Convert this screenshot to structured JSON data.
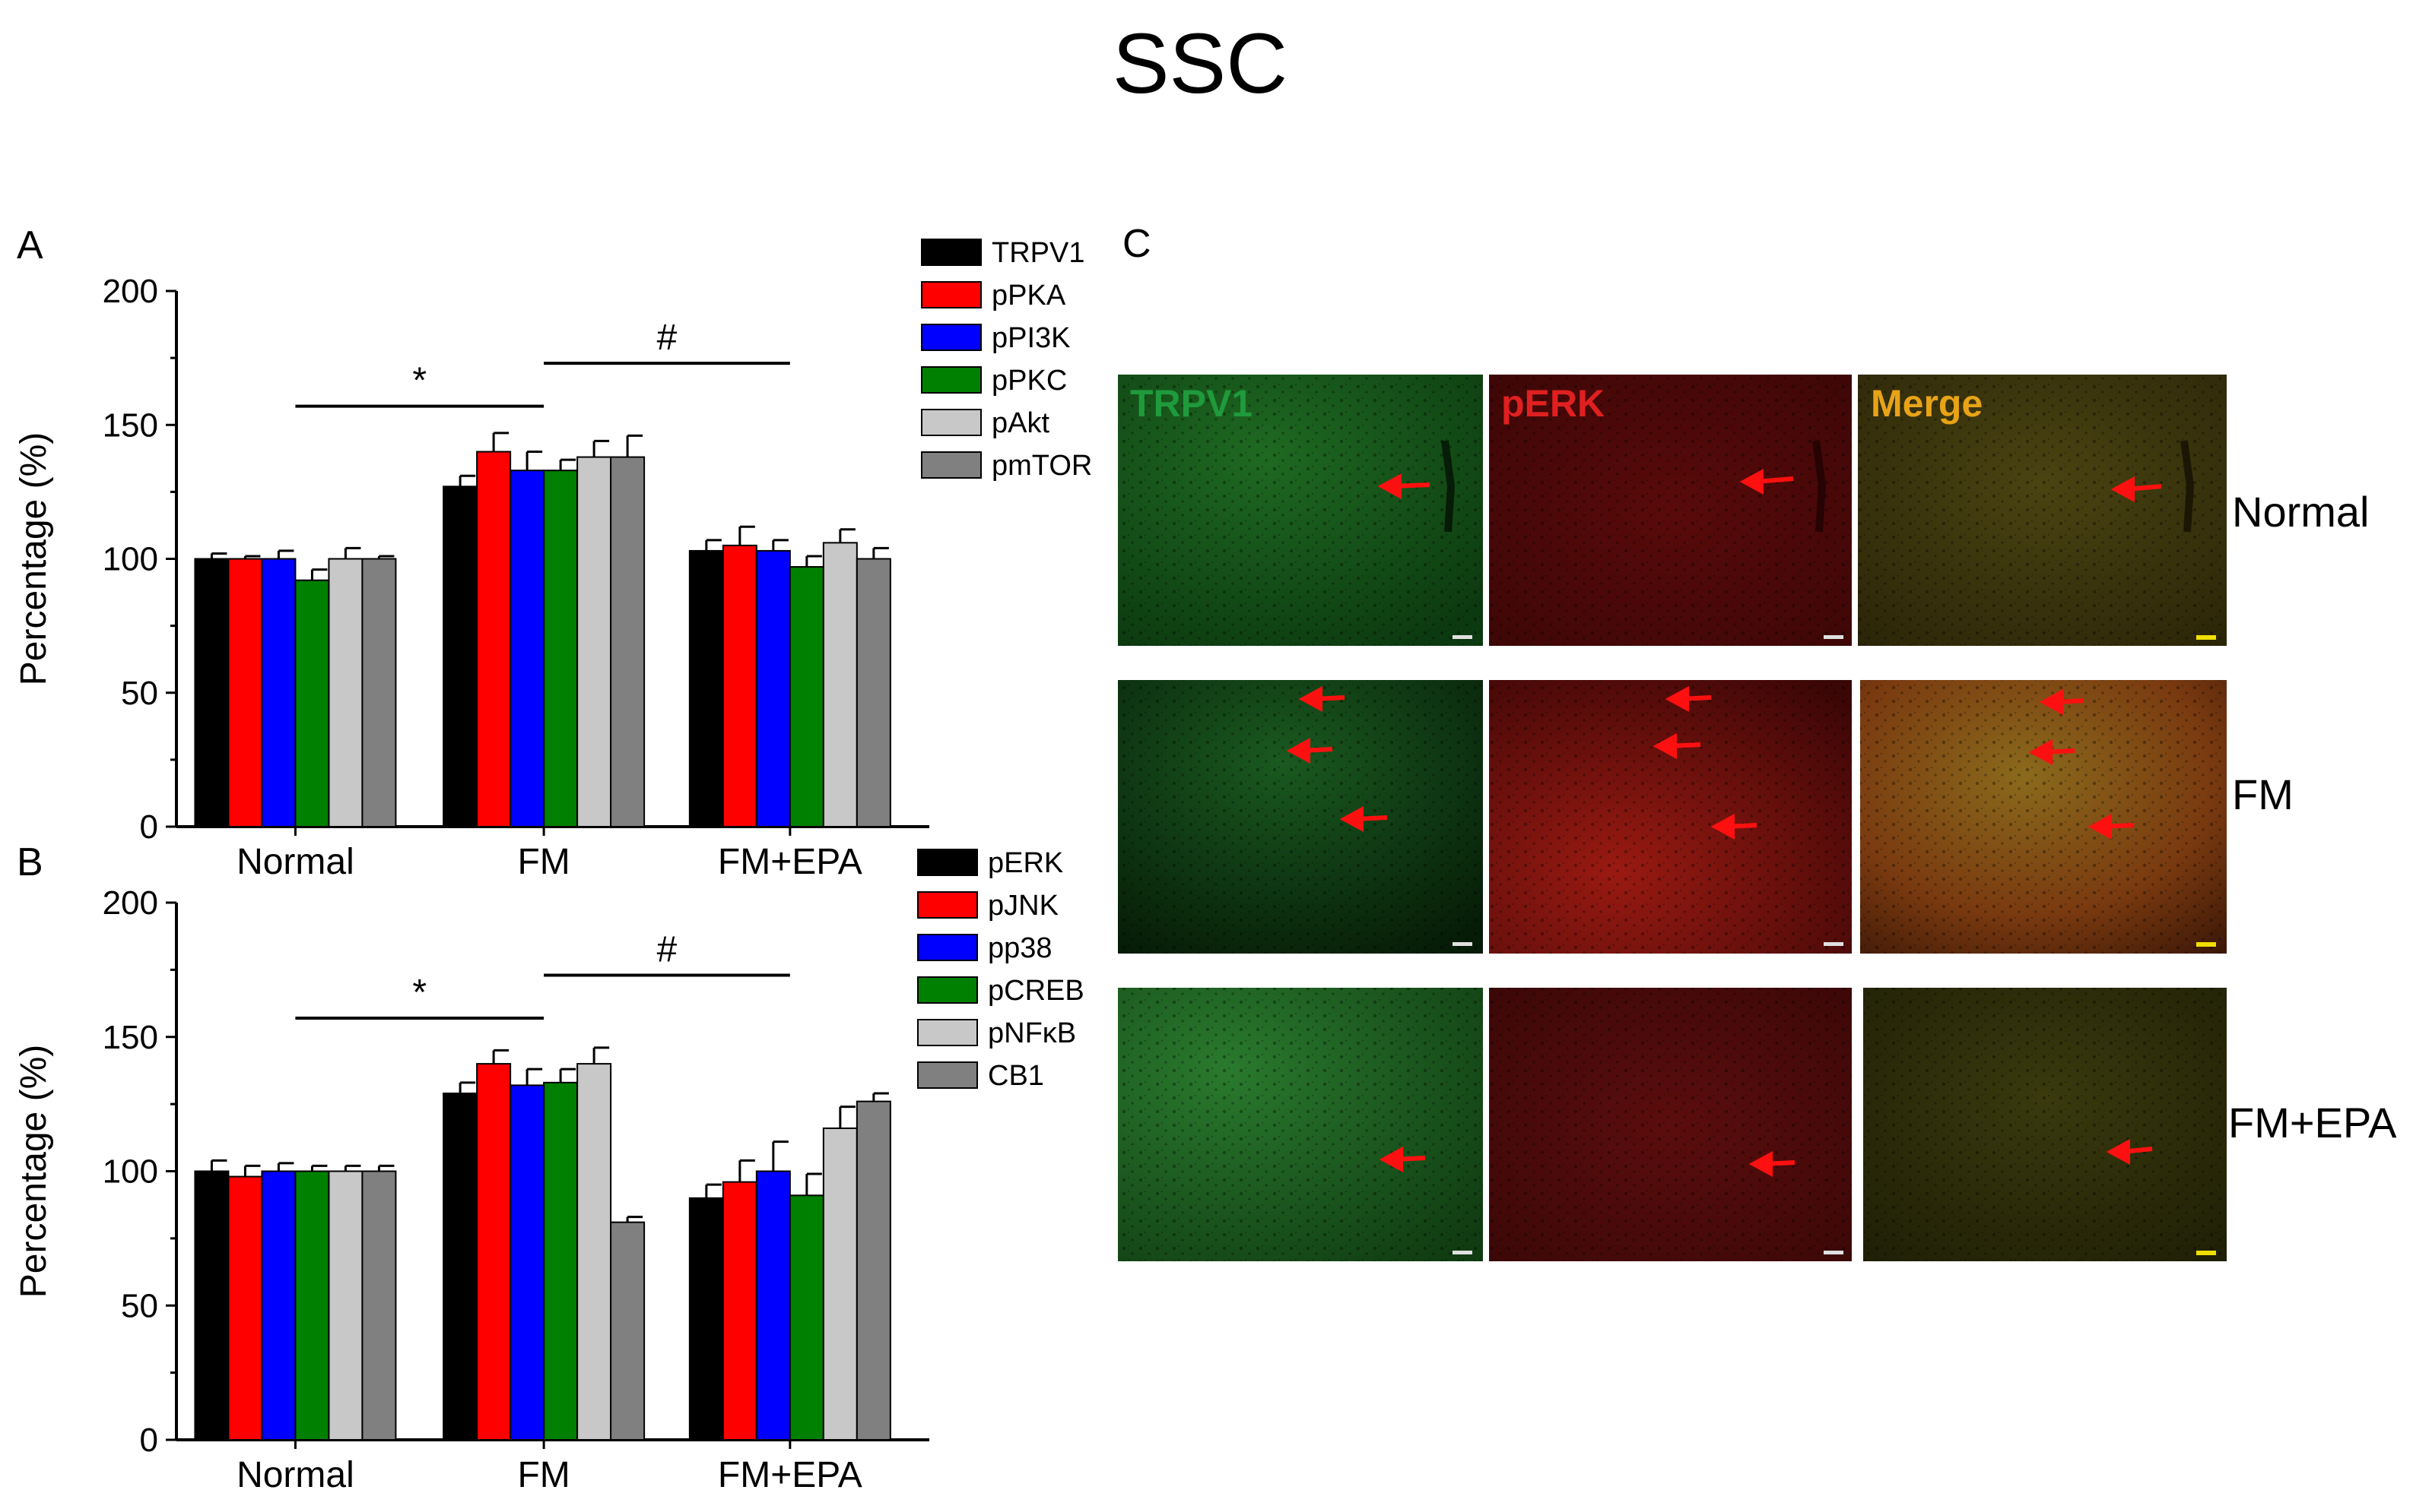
{
  "figure_title": "SSC",
  "panel_labels": {
    "a": "A",
    "b": "B",
    "c": "C"
  },
  "colors": {
    "black": "#000000",
    "red": "#ff0000",
    "blue": "#0000ff",
    "green": "#008000",
    "lightgray": "#c8c8c8",
    "darkgray": "#808080",
    "trpv1_text": "#1f9a3c",
    "perk_text": "#e02020",
    "merge_text": "#e8a317"
  },
  "chart_data": [
    {
      "type": "bar",
      "panel": "A",
      "categories": [
        "Normal",
        "FM",
        "FM+EPA"
      ],
      "ylabel": "Percentage (%)",
      "xlabel": "",
      "ylim": [
        0,
        200
      ],
      "yticks": [
        0,
        50,
        100,
        150,
        200
      ],
      "legend_position": "right",
      "series": [
        {
          "name": "TRPV1",
          "color": "#000000",
          "values": [
            100,
            127,
            103
          ],
          "errors": [
            2,
            4,
            4
          ]
        },
        {
          "name": "pPKA",
          "color": "#ff0000",
          "values": [
            100,
            140,
            105
          ],
          "errors": [
            1,
            7,
            7
          ]
        },
        {
          "name": "pPI3K",
          "color": "#0000ff",
          "values": [
            100,
            133,
            103
          ],
          "errors": [
            3,
            7,
            4
          ]
        },
        {
          "name": "pPKC",
          "color": "#008000",
          "values": [
            92,
            133,
            97
          ],
          "errors": [
            4,
            4,
            4
          ]
        },
        {
          "name": "pAkt",
          "color": "#c8c8c8",
          "values": [
            100,
            138,
            106
          ],
          "errors": [
            4,
            6,
            5
          ]
        },
        {
          "name": "pmTOR",
          "color": "#808080",
          "values": [
            100,
            138,
            100
          ],
          "errors": [
            1,
            8,
            4
          ]
        }
      ],
      "annotations": [
        {
          "text": "*",
          "from": "Normal",
          "to": "FM",
          "y": 157
        },
        {
          "text": "#",
          "from": "FM",
          "to": "FM+EPA",
          "y": 173
        }
      ]
    },
    {
      "type": "bar",
      "panel": "B",
      "categories": [
        "Normal",
        "FM",
        "FM+EPA"
      ],
      "ylabel": "Percentage (%)",
      "xlabel": "",
      "ylim": [
        0,
        200
      ],
      "yticks": [
        0,
        50,
        100,
        150,
        200
      ],
      "legend_position": "right",
      "series": [
        {
          "name": "pERK",
          "color": "#000000",
          "values": [
            100,
            129,
            90
          ],
          "errors": [
            4,
            4,
            5
          ]
        },
        {
          "name": "pJNK",
          "color": "#ff0000",
          "values": [
            98,
            140,
            96
          ],
          "errors": [
            4,
            5,
            8
          ]
        },
        {
          "name": "pp38",
          "color": "#0000ff",
          "values": [
            100,
            132,
            100
          ],
          "errors": [
            3,
            6,
            11
          ]
        },
        {
          "name": "pCREB",
          "color": "#008000",
          "values": [
            100,
            133,
            91
          ],
          "errors": [
            2,
            5,
            8
          ]
        },
        {
          "name": "pNFκB",
          "color": "#c8c8c8",
          "values": [
            100,
            140,
            116
          ],
          "errors": [
            2,
            6,
            8
          ]
        },
        {
          "name": "CB1",
          "color": "#808080",
          "values": [
            100,
            81,
            126
          ],
          "errors": [
            2,
            2,
            3
          ]
        }
      ],
      "annotations": [
        {
          "text": "*",
          "from": "Normal",
          "to": "FM",
          "y": 157
        },
        {
          "text": "#",
          "from": "FM",
          "to": "FM+EPA",
          "y": 173
        }
      ]
    }
  ],
  "micrographs": {
    "column_labels": [
      "TRPV1",
      "pERK",
      "Merge"
    ],
    "row_labels": [
      "Normal",
      "FM",
      "FM+EPA"
    ]
  }
}
